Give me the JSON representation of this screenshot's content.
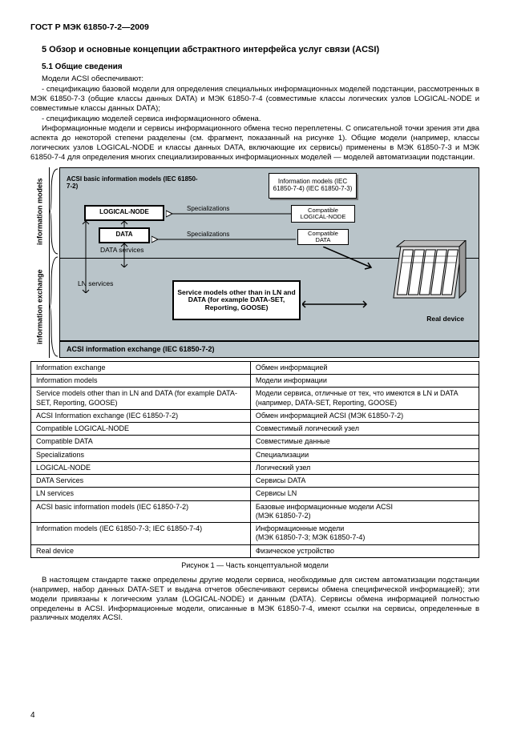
{
  "header": "ГОСТ Р МЭК 61850-7-2—2009",
  "section_title": "5  Обзор и основные концепции абстрактного интерфейса услуг связи (ACSI)",
  "subsection_title": "5.1 Общие сведения",
  "p1": "Модели ACSI обеспечивают:",
  "p2": "- спецификацию базовой модели для определения специальных информационных моделей подстан­ции, рассмотренных в МЭК 61850-7-3 (общие классы данных DATA) и МЭК 61850-7-4 (совместимые классы логических узлов LOGICAL-NODE и совместимые классы данных DATA);",
  "p3": "- спецификацию моделей сервиса информационного обмена.",
  "p4": "Информационные модели и сервисы информационного обмена тесно переплетены. С описательной точки зрения эти два аспекта до некоторой степени разделены (см. фрагмент, показанный на рисунке 1). Общие модели (например, классы логических узлов LOGICAL-NODE и классы данных DATA, включаю­щие их сервисы) применены в МЭК 61850-7-3 и МЭК 61850-7-4 для определения многих специализирован­ных информационных моделей — моделей автоматизации подстанции.",
  "figure": {
    "side_top": "information models",
    "side_bottom": "information exchange",
    "box_acsi_basic": "ACSI basic information models\n(IEC 61850-7-2)",
    "box_info_models": "Information models\n(IEC 61850-7-4)\n(IEC 61850-7-3)",
    "box_logical_node": "LOGICAL-NODE",
    "box_data": "DATA",
    "lbl_data_services": "DATA\nservices",
    "lbl_ln_services": "LN services",
    "box_comp_ln": "Compatible\nLOGICAL-NODE",
    "box_comp_data": "Compatible\nDATA",
    "lbl_spec1": "Specializations",
    "lbl_spec2": "Specializations",
    "box_service_models": "Service models\nother than in LN and DATA\n(for example DATA-SET,\nReporting, GOOSE)",
    "lbl_real_device": "Real device",
    "bottom_bar": "ACSI information exchange (IEC 61850-7-2)"
  },
  "table_rows": [
    [
      "Information exchange",
      "Обмен информацией"
    ],
    [
      "Information models",
      "Модели информации"
    ],
    [
      "Service models other than in LN and DATA (for example DATA-SET, Reporting, GOOSE)",
      "Модели сервиса, отличные от тех, что имеются в LN и DATA (например, DATA-SET, Reporting, GOOSE)"
    ],
    [
      "ACSI Information exchange (IEC 61850-7-2)",
      "Обмен информацией ACSI (МЭК 61850-7-2)"
    ],
    [
      "Compatible LOGICAL-NODE",
      "Совместимый логический узел"
    ],
    [
      "Compatible DATA",
      "Совместимые данные"
    ],
    [
      "Specializations",
      "Специализации"
    ],
    [
      "LOGICAL-NODE",
      "Логический узел"
    ],
    [
      "DATA Services",
      "Сервисы DATA"
    ],
    [
      "LN services",
      "Сервисы LN"
    ],
    [
      "ACSI basic information models (IEC 61850-7-2)",
      "Базовые информационные модели ACSI\n(МЭК 61850-7-2)"
    ],
    [
      "Information models (IEC 61850-7-3; IEC 61850-7-4)",
      "Информационные модели\n(МЭК 61850-7-3; МЭК 61850-7-4)"
    ],
    [
      "Real device",
      "Физическое устройство"
    ]
  ],
  "figure_caption": "Рисунок 1 — Часть концептуальной модели",
  "p5": "В настоящем стандарте также определены другие модели сервиса, необходимые для систем авто­матизации подстанции (например, набор данных DATA-SET и выдача отчетов обеспечивают сервисы обме­на специфической информацией); эти модели привязаны к логическим узлам (LOGICAL-NODE) и данным (DATA). Сервисы обмена информацией полностью определены в ACSI. Информационные модели, описан­ные в МЭК 61850-7-4, имеют ссылки на сервисы, определенные в различных моделях ACSI.",
  "page_num": "4"
}
